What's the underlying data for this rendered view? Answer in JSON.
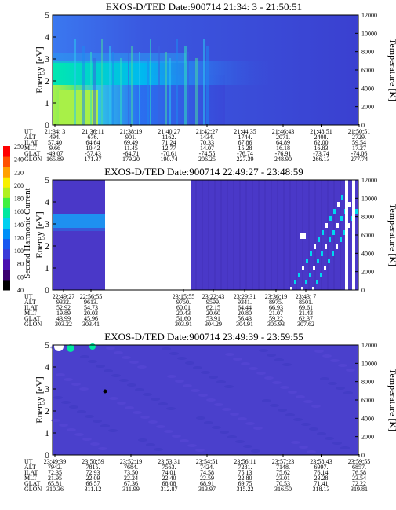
{
  "chart_data": [
    {
      "type": "heatmap",
      "title": "EXOS-D/TED   Date:900714  21:34: 3 - 21:50:51",
      "ylabel": "Energy [eV]",
      "y2label": "Temperature [K]",
      "ylim": [
        0,
        5
      ],
      "yticks": [
        "0",
        "1",
        "2",
        "3",
        "4",
        "5"
      ],
      "y2lim": [
        0,
        12000
      ],
      "y2ticks": [
        "0",
        "2000",
        "4000",
        "6000",
        "8000",
        "10000",
        "12000"
      ],
      "row_labels": [
        "UT",
        "ALT",
        "ILAT",
        "MLT",
        "GLAT",
        "GLON"
      ],
      "columns": [
        [
          "21:34: 3",
          "494.",
          "57.40",
          "9.66",
          "-49.07",
          "165.89"
        ],
        [
          "21:36:11",
          "676.",
          "64.64",
          "10.42",
          "-57.43",
          "171.37"
        ],
        [
          "21:38:19",
          "901.",
          "69.49",
          "11.45",
          "-64.71",
          "179.20"
        ],
        [
          "21:40:27",
          "1162.",
          "71.24",
          "12.77",
          "-70.61",
          "190.74"
        ],
        [
          "21:42:27",
          "1434.",
          "70.33",
          "14.07",
          "-74.55",
          "206.25"
        ],
        [
          "21:44:35",
          "1744.",
          "67.86",
          "15.28",
          "-76.74",
          "227.39"
        ],
        [
          "21:46:43",
          "2071.",
          "64.89",
          "16.18",
          "-76.91",
          "248.90"
        ],
        [
          "21:48:51",
          "2408.",
          "62.00",
          "16.83",
          "-73.74",
          "266.13"
        ],
        [
          "21:50:51",
          "2729.",
          "59.54",
          "17.27",
          "-74.06",
          "277.74"
        ]
      ]
    },
    {
      "type": "heatmap",
      "title": "EXOS-D/TED   Date:900714  22:49:27 - 23:48:59",
      "ylabel": "Energy [eV]",
      "y2label": "Temperature [K]",
      "ylim": [
        0,
        5
      ],
      "yticks": [
        "0",
        "1",
        "2",
        "3",
        "4",
        "5"
      ],
      "y2lim": [
        0,
        12000
      ],
      "y2ticks": [
        "0",
        "2000",
        "4000",
        "6000",
        "8000",
        "10000",
        "12000"
      ],
      "row_labels": [
        "UT",
        "ALT",
        "ILAT",
        "MLT",
        "GLAT",
        "GLON"
      ],
      "columns": [
        [
          "22:49:27",
          "9332.",
          "52.92",
          "19.89",
          "43.99",
          "303.22"
        ],
        [
          "22:56:55",
          "9613.",
          "54.73",
          "20.03",
          "45.96",
          "303.41"
        ],
        [
          "23:15:55",
          "9750.",
          "60.01",
          "20.43",
          "51.60",
          "303.91"
        ],
        [
          "23:22:43",
          "9599.",
          "62.15",
          "20.60",
          "53.91",
          "304.29"
        ],
        [
          "23:29:31",
          "9341.",
          "64.44",
          "20.80",
          "56.43",
          "304.91"
        ],
        [
          "23:36:19",
          "8975.",
          "66.93",
          "21.07",
          "59.22",
          "305.93"
        ],
        [
          "23:43: 7",
          "8501.",
          "69.61",
          "21.43",
          "62.37",
          "307.62"
        ]
      ]
    },
    {
      "type": "heatmap",
      "title": "EXOS-D/TED   Date:900714  23:49:39 - 23:59:55",
      "ylabel": "Energy [eV]",
      "y2label": "Temperature [K]",
      "ylim": [
        0,
        5
      ],
      "yticks": [
        "0",
        "1",
        "2",
        "3",
        "4",
        "5"
      ],
      "y2lim": [
        0,
        12000
      ],
      "y2ticks": [
        "0",
        "2000",
        "4000",
        "6000",
        "8000",
        "10000",
        "12000"
      ],
      "row_labels": [
        "UT",
        "ALT",
        "ILAT",
        "MLT",
        "GLAT",
        "GLON"
      ],
      "columns": [
        [
          "23:49:39",
          "7942.",
          "72.35",
          "21.95",
          "65.81",
          "310.36"
        ],
        [
          "23:50:59",
          "7815.",
          "72.93",
          "22.09",
          "66.57",
          "311.12"
        ],
        [
          "23:52:19",
          "7684.",
          "73.50",
          "22.24",
          "67.36",
          "311.99"
        ],
        [
          "23:53:31",
          "7563.",
          "74.01",
          "22.40",
          "68.08",
          "312.87"
        ],
        [
          "23:54:51",
          "7424.",
          "74.58",
          "22.59",
          "68.91",
          "313.97"
        ],
        [
          "23:56:11",
          "7281.",
          "75.13",
          "22.80",
          "69.75",
          "315.22"
        ],
        [
          "23:57:23",
          "7148.",
          "75.62",
          "23.01",
          "70.53",
          "316.50"
        ],
        [
          "23:58:43",
          "6997.",
          "76.14",
          "23.28",
          "71.41",
          "318.13"
        ],
        [
          "23:59:55",
          "6857.",
          "76.58",
          "23.54",
          "72.22",
          "319.81"
        ]
      ]
    }
  ],
  "colorbar": {
    "label": "Second Harmonic Current",
    "ticks": [
      "40",
      "60",
      "80",
      "100",
      "120",
      "140",
      "160",
      "180",
      "200",
      "220",
      "240",
      "250"
    ],
    "colors": [
      "#000000",
      "#3a006e",
      "#4a0fb0",
      "#3a3ad8",
      "#1858f0",
      "#0090f8",
      "#00d0f0",
      "#00e8a0",
      "#40f040",
      "#b0f020",
      "#f8f000",
      "#ffa000",
      "#ff5000",
      "#ff0000"
    ]
  }
}
